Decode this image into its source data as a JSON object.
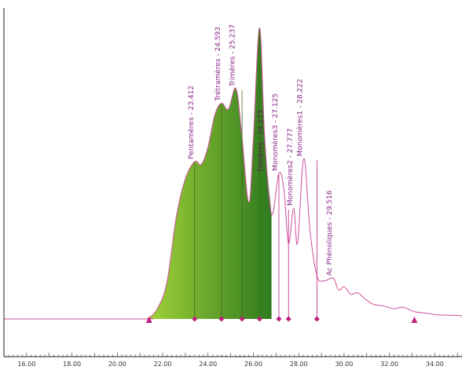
{
  "chart_data": {
    "type": "area",
    "title": "",
    "xlabel": "",
    "ylabel": "",
    "xlim": [
      15.0,
      35.2
    ],
    "ylim": [
      0,
      100
    ],
    "grid": false,
    "x_ticks": [
      "16.00",
      "18.00",
      "20.00",
      "22.00",
      "24.00",
      "26.00",
      "28.00",
      "30.00",
      "32.00",
      "34.00"
    ],
    "x_tick_values": [
      16,
      18,
      20,
      22,
      24,
      26,
      28,
      30,
      32,
      34
    ],
    "colors": {
      "line": "#d0509a",
      "text": "#8b2a8b",
      "fill_light": "#9acd32",
      "fill_dark": "#2f7a1f",
      "marker": "#c01f7f",
      "axis": "#222222"
    },
    "trace": {
      "x": [
        15.0,
        21.0,
        21.4,
        21.8,
        22.2,
        22.6,
        23.0,
        23.412,
        23.7,
        24.0,
        24.3,
        24.593,
        24.9,
        25.237,
        25.5,
        25.8,
        26.0,
        26.273,
        26.5,
        26.8,
        27.125,
        27.35,
        27.55,
        27.777,
        27.95,
        28.222,
        28.5,
        28.8,
        29.1,
        29.516,
        29.75,
        30.0,
        30.3,
        30.6,
        30.9,
        31.3,
        31.7,
        32.2,
        32.6,
        33.1,
        33.6,
        34.0,
        34.5,
        35.0,
        35.2
      ],
      "y": [
        0,
        0,
        0.5,
        4,
        13,
        35,
        48,
        54,
        53,
        59,
        70,
        74,
        72,
        79,
        62,
        40,
        62,
        100,
        62,
        36,
        50,
        44,
        26,
        38,
        26,
        55,
        30,
        15,
        13,
        14,
        10,
        11,
        8.5,
        9,
        7,
        5,
        4.5,
        3.5,
        4,
        2.5,
        2,
        1.5,
        1.3,
        1.2,
        1
      ]
    },
    "filled_region": {
      "x_start": 21.0,
      "x_end": 26.8
    },
    "baseline_markers": [
      {
        "x": 21.4,
        "shape": "triangle"
      },
      {
        "x": 23.412,
        "shape": "diamond"
      },
      {
        "x": 24.593,
        "shape": "diamond"
      },
      {
        "x": 25.5,
        "shape": "diamond"
      },
      {
        "x": 26.273,
        "shape": "diamond"
      },
      {
        "x": 27.125,
        "shape": "diamond"
      },
      {
        "x": 27.55,
        "shape": "diamond"
      },
      {
        "x": 28.8,
        "shape": "diamond"
      },
      {
        "x": 33.1,
        "shape": "triangle"
      }
    ],
    "peaks": [
      {
        "label": "Pentamères - 23.412",
        "x": 23.412,
        "y": 54
      },
      {
        "label": "Trétramères - 24.593",
        "x": 24.593,
        "y": 74
      },
      {
        "label": "Trimères - 25.237",
        "x": 25.237,
        "y": 79
      },
      {
        "label": "Dimères - 26.273",
        "x": 26.273,
        "y": 100
      },
      {
        "label": "Monomères3 - 27.125",
        "x": 27.125,
        "y": 50
      },
      {
        "label": "Monomères2 - 27.777",
        "x": 27.777,
        "y": 38
      },
      {
        "label": "Monomères1 - 28.222",
        "x": 28.222,
        "y": 55
      },
      {
        "label": "Ac Phénoliques - 29.516",
        "x": 29.516,
        "y": 14
      }
    ]
  }
}
